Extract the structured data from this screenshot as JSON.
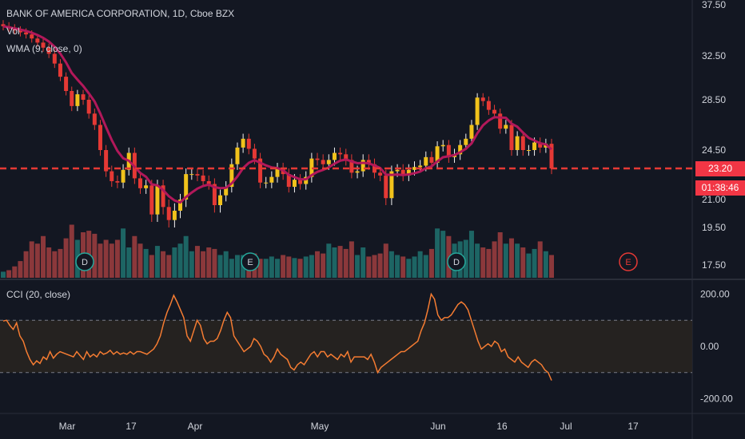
{
  "header": {
    "title": "BANK OF AMERICA CORPORATION, 1D, Cboe BZX",
    "vol_label": "Vol",
    "wma_label": "WMA (9, close, 0)",
    "cci_label": "CCI (20, close)"
  },
  "price_tag": {
    "last_price": "23.20",
    "countdown": "01:38:46"
  },
  "colors": {
    "up": "#26a69a",
    "down": "#ef5350",
    "wma": "#b2185a",
    "cci": "#f57c32",
    "price_line": "#e53935",
    "tag": "#f23645"
  },
  "chart_data": [
    {
      "type": "candlestick",
      "title": "BANK OF AMERICA CORPORATION, 1D, Cboe BZX",
      "ylim": [
        16.8,
        37.8
      ],
      "y_ticks": [
        "37.50",
        "32.50",
        "28.50",
        "24.50",
        "21.00",
        "19.50",
        "17.50"
      ],
      "x_ticks": [
        "Mar",
        "17",
        "Apr",
        "May",
        "Jun",
        "16",
        "Jul",
        "17"
      ],
      "last_price": 23.2,
      "close": [
        35.4,
        35.2,
        35.0,
        34.8,
        34.6,
        34.2,
        33.8,
        33.3,
        32.7,
        31.8,
        30.6,
        29.3,
        28.0,
        29.0,
        28.5,
        27.4,
        26.5,
        24.5,
        23.0,
        22.3,
        22.2,
        23.1,
        24.3,
        22.5,
        21.8,
        22.0,
        20.2,
        22.0,
        20.6,
        19.9,
        20.4,
        21.0,
        22.8,
        22.8,
        22.7,
        22.3,
        22.1,
        20.7,
        21.3,
        21.9,
        23.5,
        24.7,
        25.4,
        24.6,
        23.9,
        22.2,
        22.2,
        22.6,
        23.2,
        22.8,
        21.9,
        22.4,
        22.1,
        22.6,
        23.9,
        23.8,
        23.5,
        23.8,
        24.3,
        24.2,
        23.8,
        22.9,
        23.0,
        23.8,
        23.5,
        22.9,
        22.7,
        21.1,
        23.0,
        23.1,
        22.7,
        23.1,
        23.3,
        23.4,
        24.0,
        23.6,
        24.8,
        24.9,
        24.0,
        24.2,
        24.9,
        25.4,
        26.5,
        28.7,
        28.4,
        27.7,
        27.4,
        26.2,
        26.5,
        24.5,
        25.6,
        24.5,
        24.5,
        25.1,
        24.7,
        25.0,
        23.2
      ],
      "volume": [
        0.08,
        0.1,
        0.15,
        0.22,
        0.35,
        0.48,
        0.45,
        0.55,
        0.4,
        0.35,
        0.38,
        0.52,
        0.7,
        0.5,
        0.6,
        0.62,
        0.58,
        0.45,
        0.5,
        0.45,
        0.5,
        0.65,
        0.4,
        0.55,
        0.45,
        0.38,
        0.3,
        0.42,
        0.35,
        0.3,
        0.4,
        0.45,
        0.55,
        0.35,
        0.42,
        0.35,
        0.4,
        0.38,
        0.3,
        0.35,
        0.25,
        0.3,
        0.3,
        0.28,
        0.32,
        0.25,
        0.25,
        0.28,
        0.25,
        0.3,
        0.28,
        0.26,
        0.25,
        0.28,
        0.3,
        0.35,
        0.32,
        0.45,
        0.4,
        0.42,
        0.38,
        0.48,
        0.3,
        0.4,
        0.28,
        0.3,
        0.32,
        0.45,
        0.35,
        0.3,
        0.28,
        0.25,
        0.28,
        0.35,
        0.3,
        0.38,
        0.65,
        0.62,
        0.55,
        0.45,
        0.48,
        0.5,
        0.62,
        0.45,
        0.4,
        0.38,
        0.48,
        0.6,
        0.45,
        0.52,
        0.45,
        0.4,
        0.32,
        0.38,
        0.48,
        0.35,
        0.3
      ]
    },
    {
      "type": "line",
      "name": "CCI (20, close)",
      "ylim": [
        -250,
        250
      ],
      "y_ticks": [
        "200.00",
        "0.00",
        "-200.00"
      ],
      "band": [
        -100,
        100
      ],
      "values": [
        97,
        100,
        80,
        65,
        90,
        40,
        20,
        -20,
        -50,
        -70,
        -55,
        -65,
        -40,
        -50,
        -20,
        -45,
        -30,
        -20,
        -25,
        -30,
        -35,
        -40,
        -20,
        -35,
        -50,
        -20,
        -40,
        -30,
        -40,
        -20,
        -30,
        -25,
        -15,
        -30,
        -20,
        -30,
        -25,
        -30,
        -20,
        -30,
        -20,
        -20,
        -25,
        -30,
        -20,
        -10,
        10,
        40,
        90,
        130,
        160,
        195,
        170,
        140,
        110,
        40,
        20,
        60,
        100,
        80,
        30,
        10,
        20,
        20,
        30,
        60,
        100,
        130,
        110,
        40,
        20,
        0,
        -20,
        -10,
        0,
        30,
        20,
        0,
        -30,
        -40,
        -60,
        -40,
        -10,
        -30,
        -40,
        -50,
        -80,
        -90,
        -70,
        -60,
        -70,
        -50,
        -30,
        -20,
        -40,
        -20,
        -20,
        -40,
        -30,
        -40,
        -50,
        -30,
        -40,
        -20,
        -60,
        -40,
        -40,
        -40,
        -40,
        -50,
        -30,
        -60,
        -100,
        -80,
        -70,
        -60,
        -50,
        -40,
        -30,
        -20,
        -20,
        -10,
        0,
        10,
        20,
        60,
        90,
        140,
        200,
        180,
        120,
        100,
        110,
        110,
        120,
        140,
        160,
        170,
        160,
        140,
        100,
        60,
        20,
        -10,
        0,
        10,
        0,
        20,
        10,
        -20,
        -10,
        -40,
        -50,
        -60,
        -40,
        -60,
        -70,
        -80,
        -60,
        -50,
        -60,
        -70,
        -90,
        -100,
        -130
      ]
    }
  ],
  "events": [
    "D",
    "E",
    "D",
    "E"
  ]
}
